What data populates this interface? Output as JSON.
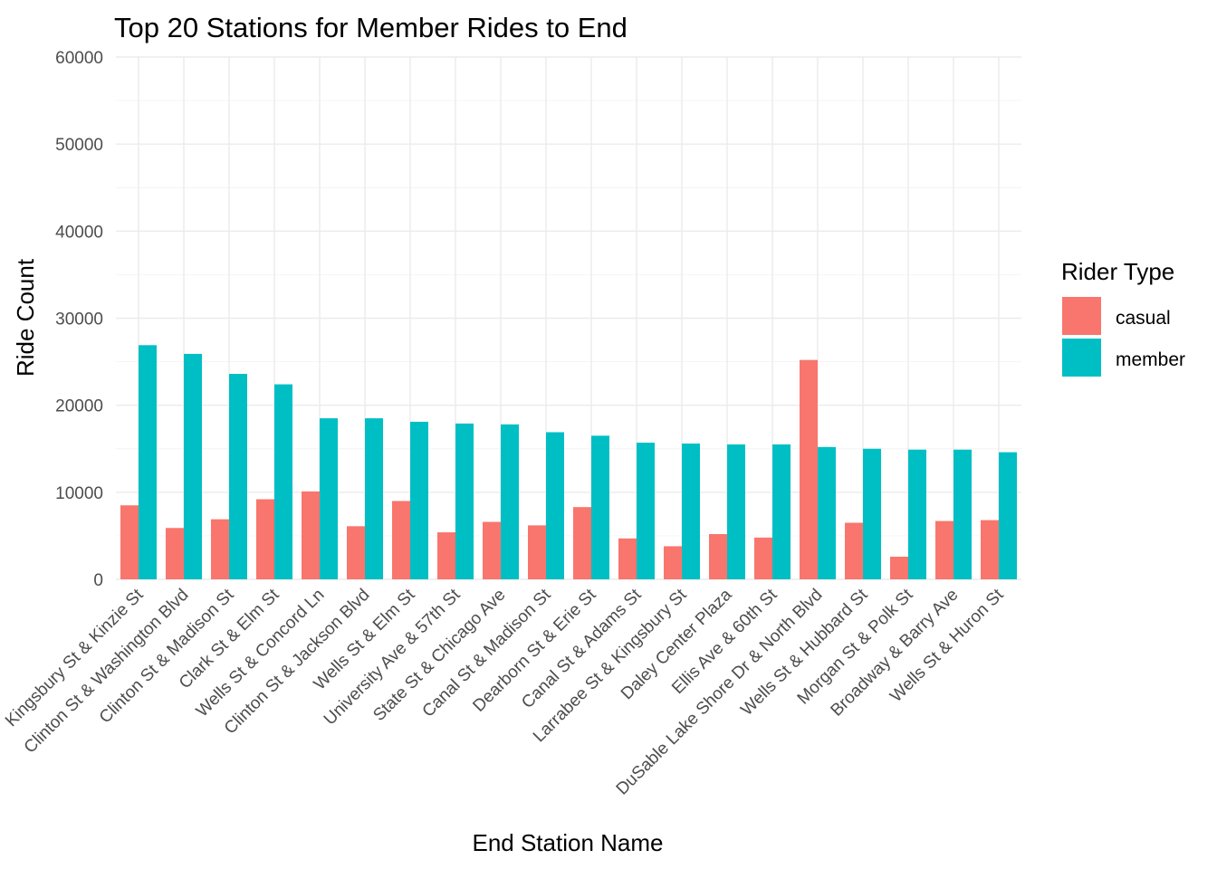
{
  "chart_data": {
    "type": "bar",
    "title": "Top 20 Stations for Member Rides to End",
    "xlabel": "End Station Name",
    "ylabel": "Ride Count",
    "ylim": [
      0,
      60000
    ],
    "yticks": [
      0,
      10000,
      20000,
      30000,
      40000,
      50000,
      60000
    ],
    "grid": true,
    "legend": {
      "title": "Rider Type",
      "position": "right"
    },
    "categories": [
      "Kingsbury St & Kinzie St",
      "Clinton St & Washington Blvd",
      "Clinton St & Madison St",
      "Clark St & Elm St",
      "Wells St & Concord Ln",
      "Clinton St & Jackson Blvd",
      "Wells St & Elm St",
      "University Ave & 57th St",
      "State St & Chicago Ave",
      "Canal St & Madison St",
      "Dearborn St & Erie St",
      "Canal St & Adams St",
      "Larrabee St & Kingsbury St",
      "Daley Center Plaza",
      "Ellis Ave & 60th St",
      "DuSable Lake Shore Dr & North Blvd",
      "Wells St & Hubbard St",
      "Morgan St & Polk St",
      "Broadway & Barry Ave",
      "Wells St & Huron St"
    ],
    "series": [
      {
        "name": "casual",
        "color": "#f8766d",
        "values": [
          8500,
          5900,
          6900,
          9200,
          10100,
          6100,
          9000,
          5400,
          6600,
          6200,
          8300,
          4700,
          3800,
          5200,
          4800,
          25200,
          6500,
          2600,
          6700,
          6800
        ]
      },
      {
        "name": "member",
        "color": "#00bfc4",
        "values": [
          26900,
          25900,
          23600,
          22400,
          18500,
          18500,
          18100,
          17900,
          17800,
          16900,
          16500,
          15700,
          15600,
          15500,
          15500,
          15200,
          15000,
          14900,
          14900,
          14600
        ]
      }
    ]
  }
}
